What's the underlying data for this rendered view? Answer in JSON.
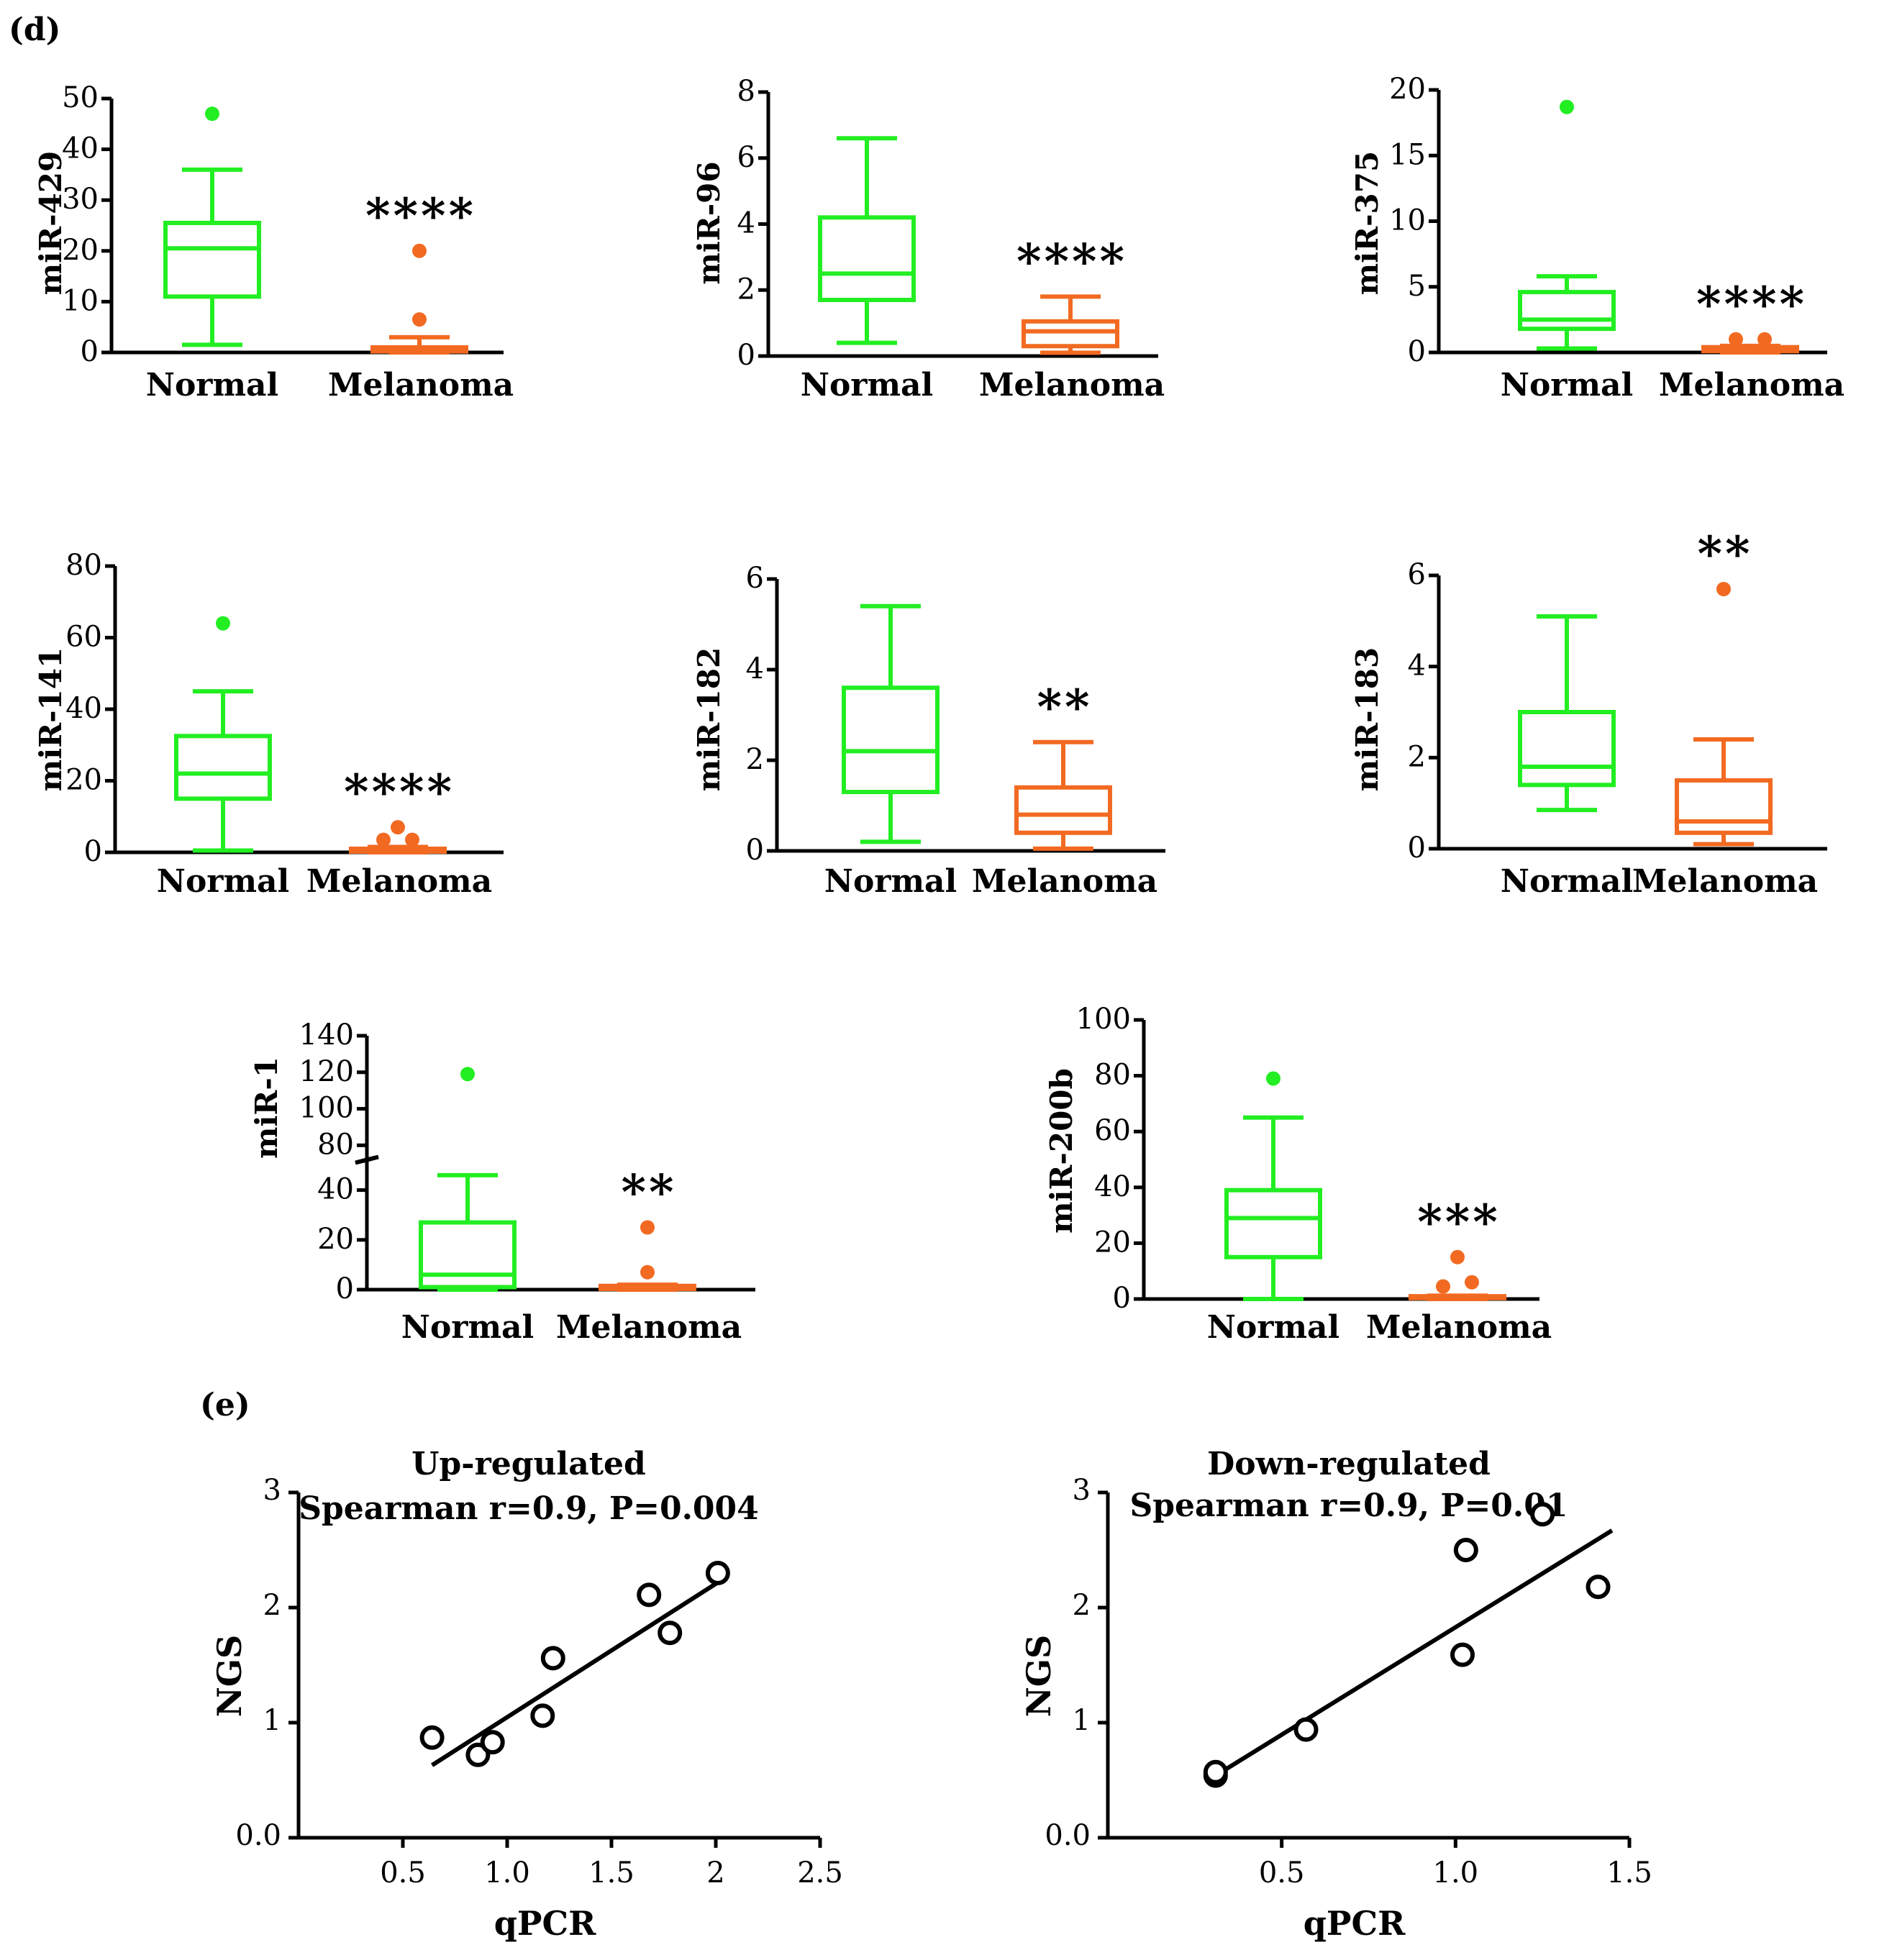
{
  "panels": {
    "d": "(d)",
    "e": "(e)"
  },
  "colors": {
    "normal": "#22EE22",
    "melanoma": "#F26A22",
    "axis": "#000000",
    "scatter": "#000000"
  },
  "chart_data": [
    {
      "type": "box",
      "id": "mir429",
      "ylabel": "miR-429",
      "yticks": [
        {
          "v": 0,
          "label": "0"
        },
        {
          "v": 10,
          "label": "10"
        },
        {
          "v": 20,
          "label": "20"
        },
        {
          "v": 30,
          "label": "30"
        },
        {
          "v": 40,
          "label": "40"
        },
        {
          "v": 50,
          "label": "50"
        }
      ],
      "ylim": [
        0,
        50
      ],
      "categories": [
        "Normal",
        "Melanoma"
      ],
      "significance": "****",
      "groups": [
        {
          "name": "Normal",
          "min": 1.5,
          "q1": 11,
          "median": 20.5,
          "q3": 25.5,
          "max": 36,
          "outliers": [
            47
          ]
        },
        {
          "name": "Melanoma",
          "min": 0,
          "q1": 0.2,
          "median": 0.5,
          "q3": 1,
          "max": 3,
          "outliers": [
            6.5,
            20
          ]
        }
      ]
    },
    {
      "type": "box",
      "id": "mir96",
      "ylabel": "miR-96",
      "yticks": [
        {
          "v": 0,
          "label": "0"
        },
        {
          "v": 2,
          "label": "2"
        },
        {
          "v": 4,
          "label": "4"
        },
        {
          "v": 6,
          "label": "6"
        },
        {
          "v": 8,
          "label": "8"
        }
      ],
      "ylim": [
        0,
        8
      ],
      "categories": [
        "Normal",
        "Melanoma"
      ],
      "significance": "****",
      "groups": [
        {
          "name": "Normal",
          "min": 0.4,
          "q1": 1.7,
          "median": 2.5,
          "q3": 4.2,
          "max": 6.6,
          "outliers": []
        },
        {
          "name": "Melanoma",
          "min": 0.1,
          "q1": 0.3,
          "median": 0.75,
          "q3": 1.05,
          "max": 1.8,
          "outliers": []
        }
      ]
    },
    {
      "type": "box",
      "id": "mir375",
      "ylabel": "miR-375",
      "yticks": [
        {
          "v": 0,
          "label": "0"
        },
        {
          "v": 5,
          "label": "5"
        },
        {
          "v": 10,
          "label": "10"
        },
        {
          "v": 15,
          "label": "15"
        },
        {
          "v": 20,
          "label": "20"
        }
      ],
      "ylim": [
        0,
        20
      ],
      "categories": [
        "Normal",
        "Melanoma"
      ],
      "significance": "****",
      "groups": [
        {
          "name": "Normal",
          "min": 0.3,
          "q1": 1.8,
          "median": 2.5,
          "q3": 4.6,
          "max": 5.8,
          "outliers": [
            18.7
          ]
        },
        {
          "name": "Melanoma",
          "min": 0,
          "q1": 0.1,
          "median": 0.2,
          "q3": 0.4,
          "max": 0.5,
          "outliers": [
            1,
            1
          ]
        }
      ]
    },
    {
      "type": "box",
      "id": "mir141",
      "ylabel": "miR-141",
      "yticks": [
        {
          "v": 0,
          "label": "0"
        },
        {
          "v": 20,
          "label": "20"
        },
        {
          "v": 40,
          "label": "40"
        },
        {
          "v": 60,
          "label": "60"
        },
        {
          "v": 80,
          "label": "80"
        }
      ],
      "ylim": [
        0,
        80
      ],
      "categories": [
        "Normal",
        "Melanoma"
      ],
      "significance": "****",
      "groups": [
        {
          "name": "Normal",
          "min": 0.5,
          "q1": 15,
          "median": 22,
          "q3": 32.5,
          "max": 45,
          "outliers": [
            64
          ]
        },
        {
          "name": "Melanoma",
          "min": 0,
          "q1": 0.2,
          "median": 0.5,
          "q3": 1,
          "max": 1.5,
          "outliers": [
            7,
            3.5,
            3.5
          ]
        }
      ]
    },
    {
      "type": "box",
      "id": "mir182",
      "ylabel": "miR-182",
      "yticks": [
        {
          "v": 0,
          "label": "0"
        },
        {
          "v": 2,
          "label": "2"
        },
        {
          "v": 4,
          "label": "4"
        },
        {
          "v": 6,
          "label": "6"
        }
      ],
      "ylim": [
        0,
        6
      ],
      "categories": [
        "Normal",
        "Melanoma"
      ],
      "significance": "**",
      "groups": [
        {
          "name": "Normal",
          "min": 0.2,
          "q1": 1.3,
          "median": 2.2,
          "q3": 3.6,
          "max": 5.4,
          "outliers": []
        },
        {
          "name": "Melanoma",
          "min": 0.05,
          "q1": 0.4,
          "median": 0.8,
          "q3": 1.4,
          "max": 2.4,
          "outliers": []
        }
      ]
    },
    {
      "type": "box",
      "id": "mir183",
      "ylabel": "miR-183",
      "yticks": [
        {
          "v": 0,
          "label": "0"
        },
        {
          "v": 2,
          "label": "2"
        },
        {
          "v": 4,
          "label": "4"
        },
        {
          "v": 6,
          "label": "6"
        }
      ],
      "ylim": [
        0,
        6
      ],
      "categories": [
        "Normal",
        "Melanoma"
      ],
      "significance": "**",
      "groups": [
        {
          "name": "Normal",
          "min": 0.85,
          "q1": 1.4,
          "median": 1.8,
          "q3": 3.0,
          "max": 5.1,
          "outliers": []
        },
        {
          "name": "Melanoma",
          "min": 0.1,
          "q1": 0.35,
          "median": 0.6,
          "q3": 1.5,
          "max": 2.4,
          "outliers": [
            5.7
          ]
        }
      ]
    },
    {
      "type": "box",
      "id": "mir1",
      "ylabel": "miR-1",
      "yticks": [
        {
          "v": 0,
          "label": "0"
        },
        {
          "v": 20,
          "label": "20"
        },
        {
          "v": 40,
          "label": "40"
        },
        {
          "v": 80,
          "label": "80"
        },
        {
          "v": 100,
          "label": "100"
        },
        {
          "v": 120,
          "label": "120"
        },
        {
          "v": 140,
          "label": "140"
        }
      ],
      "ylim": [
        0,
        140
      ],
      "axis_break": [
        50,
        75
      ],
      "categories": [
        "Normal",
        "Melanoma"
      ],
      "significance": "**",
      "groups": [
        {
          "name": "Normal",
          "min": 0,
          "q1": 1,
          "median": 6,
          "q3": 27,
          "max": 46,
          "outliers": [
            119
          ]
        },
        {
          "name": "Melanoma",
          "min": 0,
          "q1": 0.3,
          "median": 1,
          "q3": 1.5,
          "max": 2,
          "outliers": [
            7,
            25
          ]
        }
      ]
    },
    {
      "type": "box",
      "id": "mir200b",
      "ylabel": "miR-200b",
      "yticks": [
        {
          "v": 0,
          "label": "0"
        },
        {
          "v": 20,
          "label": "20"
        },
        {
          "v": 40,
          "label": "40"
        },
        {
          "v": 60,
          "label": "60"
        },
        {
          "v": 80,
          "label": "80"
        },
        {
          "v": 100,
          "label": "100"
        }
      ],
      "ylim": [
        0,
        100
      ],
      "categories": [
        "Normal",
        "Melanoma"
      ],
      "significance": "***",
      "groups": [
        {
          "name": "Normal",
          "min": 0,
          "q1": 15,
          "median": 29,
          "q3": 39,
          "max": 65,
          "outliers": [
            79
          ]
        },
        {
          "name": "Melanoma",
          "min": 0,
          "q1": 0.3,
          "median": 0.6,
          "q3": 1,
          "max": 1.2,
          "outliers": [
            15,
            4.5,
            6
          ]
        }
      ]
    },
    {
      "type": "scatter",
      "id": "upreg",
      "title": "Up-regulated",
      "subtitle": "Spearman r=0.9, P=0.004",
      "xlabel": "qPCR",
      "ylabel": "NGS",
      "xlim": [
        0,
        2.5
      ],
      "ylim": [
        0,
        3
      ],
      "xticks": [
        {
          "v": 0.5,
          "label": "0.5"
        },
        {
          "v": 1.0,
          "label": "1.0"
        },
        {
          "v": 1.5,
          "label": "1.5"
        },
        {
          "v": 2.0,
          "label": "2"
        },
        {
          "v": 2.5,
          "label": "2.5"
        }
      ],
      "yticks": [
        {
          "v": 0,
          "label": "0.0"
        },
        {
          "v": 1,
          "label": "1"
        },
        {
          "v": 2,
          "label": "2"
        },
        {
          "v": 3,
          "label": "3"
        }
      ],
      "points": [
        {
          "x": 0.64,
          "y": 0.87
        },
        {
          "x": 0.86,
          "y": 0.72
        },
        {
          "x": 0.93,
          "y": 0.83
        },
        {
          "x": 1.17,
          "y": 1.06
        },
        {
          "x": 1.22,
          "y": 1.56
        },
        {
          "x": 1.68,
          "y": 2.11
        },
        {
          "x": 1.78,
          "y": 1.78
        },
        {
          "x": 2.01,
          "y": 2.3
        }
      ],
      "fit": [
        {
          "x": 0.64,
          "y": 0.63
        },
        {
          "x": 2.02,
          "y": 2.23
        }
      ]
    },
    {
      "type": "scatter",
      "id": "downreg",
      "title": "Down-regulated",
      "subtitle": "Spearman r=0.9, P=0.01",
      "xlabel": "qPCR",
      "ylabel": "NGS",
      "xlim": [
        0,
        1.5
      ],
      "ylim": [
        0,
        3
      ],
      "xticks": [
        {
          "v": 0.5,
          "label": "0.5"
        },
        {
          "v": 1.0,
          "label": "1.0"
        },
        {
          "v": 1.5,
          "label": "1.5"
        }
      ],
      "yticks": [
        {
          "v": 0,
          "label": "0.0"
        },
        {
          "v": 1,
          "label": "1"
        },
        {
          "v": 2,
          "label": "2"
        },
        {
          "v": 3,
          "label": "3"
        }
      ],
      "points": [
        {
          "x": 0.31,
          "y": 0.54
        },
        {
          "x": 0.31,
          "y": 0.57
        },
        {
          "x": 0.57,
          "y": 0.94
        },
        {
          "x": 1.02,
          "y": 1.59
        },
        {
          "x": 1.03,
          "y": 2.5
        },
        {
          "x": 1.25,
          "y": 2.81
        },
        {
          "x": 1.41,
          "y": 2.18
        }
      ],
      "fit": [
        {
          "x": 0.31,
          "y": 0.54
        },
        {
          "x": 1.45,
          "y": 2.67
        }
      ]
    }
  ]
}
